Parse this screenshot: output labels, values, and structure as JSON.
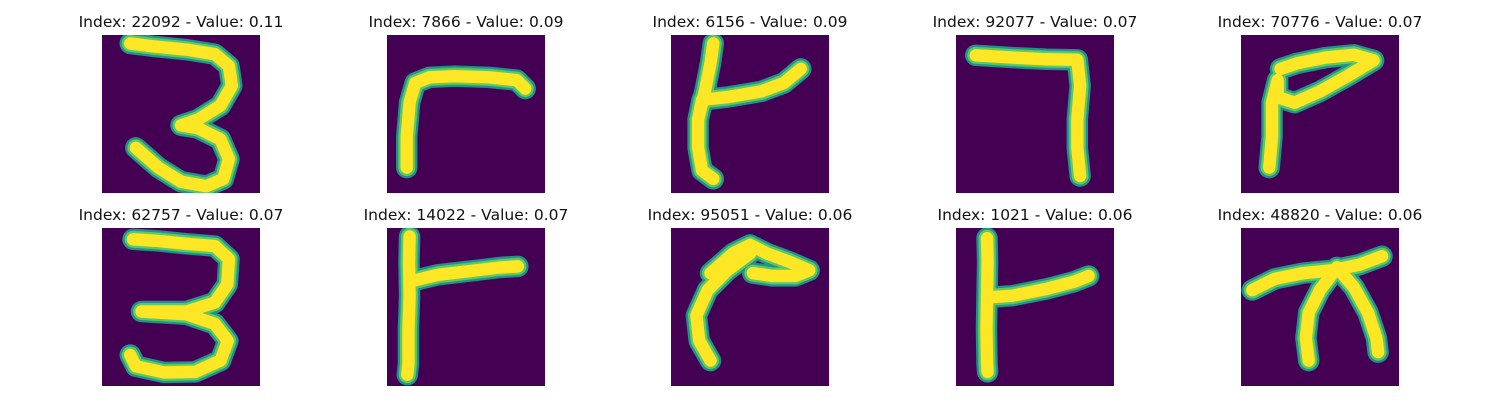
{
  "colors": {
    "background": "#440154",
    "edge": "#21918c",
    "mid": "#5ec962",
    "stroke": "#fde725"
  },
  "panels": [
    {
      "title": "Index: 22092 - Value: 0.11",
      "index": 22092,
      "value": 0.11,
      "glyph": "three-tall"
    },
    {
      "title": "Index: 7866 - Value: 0.09",
      "index": 7866,
      "value": 0.09,
      "glyph": "r-bend"
    },
    {
      "title": "Index: 6156 - Value: 0.09",
      "index": 6156,
      "value": 0.09,
      "glyph": "k-open"
    },
    {
      "title": "Index: 92077 - Value: 0.07",
      "index": 92077,
      "value": 0.07,
      "glyph": "seven-corner"
    },
    {
      "title": "Index: 70776 - Value: 0.07",
      "index": 70776,
      "value": 0.07,
      "glyph": "p-wedge"
    },
    {
      "title": "Index: 62757 - Value: 0.07",
      "index": 62757,
      "value": 0.07,
      "glyph": "three-bold"
    },
    {
      "title": "Index: 14022 - Value: 0.07",
      "index": 14022,
      "value": 0.07,
      "glyph": "t-side"
    },
    {
      "title": "Index: 95051 - Value: 0.06",
      "index": 95051,
      "value": 0.06,
      "glyph": "curve-hook"
    },
    {
      "title": "Index: 1021 - Value: 0.06",
      "index": 1021,
      "value": 0.06,
      "glyph": "t-bold"
    },
    {
      "title": "Index: 48820 - Value: 0.06",
      "index": 48820,
      "value": 0.06,
      "glyph": "split-arc"
    }
  ]
}
